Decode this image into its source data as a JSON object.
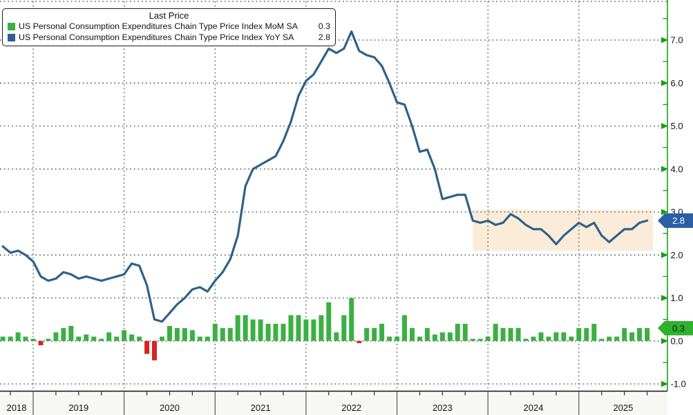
{
  "legend": {
    "title": "Last Price",
    "rows": [
      {
        "label": "US Personal Consumption Expenditures Chain Type Price Index MoM SA",
        "value": "0.3",
        "swatch_color": "#3bb042"
      },
      {
        "label": "US Personal Consumption Expenditures Chain Type Price Index YoY SA",
        "value": "2.8",
        "swatch_color": "#2d5f9b"
      }
    ]
  },
  "chart_data": {
    "type": "combo-bar-line",
    "x_axis": {
      "start_month": "2018-08",
      "end_month": "2025-09",
      "year_labels": [
        "2018",
        "2019",
        "2020",
        "2021",
        "2022",
        "2023",
        "2024",
        "2025"
      ]
    },
    "y_axis": {
      "side": "right",
      "range": [
        -1.2,
        7.95
      ],
      "ticks": [
        -1.0,
        0.0,
        1.0,
        2.0,
        3.0,
        4.0,
        5.0,
        6.0,
        7.0
      ],
      "tick_labels": [
        "-1.0",
        "0.0",
        "1.0",
        "2.0",
        "3.0",
        "4.0",
        "5.0",
        "6.0",
        "7.0"
      ],
      "minor_step": 0.5
    },
    "grid": "dotted",
    "highlight_band": {
      "from_month": "2023-10",
      "y_top": 3.05,
      "y_bottom": 2.1
    },
    "series": [
      {
        "name": "US Personal Consumption Expenditures Chain Type Price Index MoM SA",
        "type": "bar",
        "last_label": "0.3",
        "values": [
          0.1,
          0.1,
          0.2,
          0.1,
          0.05,
          -0.1,
          0.05,
          0.2,
          0.3,
          0.35,
          0.1,
          0.15,
          0.1,
          0.05,
          0.2,
          0.1,
          0.25,
          0.15,
          0.1,
          -0.3,
          -0.45,
          0.1,
          0.35,
          0.3,
          0.3,
          0.25,
          0.1,
          0.1,
          0.4,
          0.3,
          0.3,
          0.6,
          0.6,
          0.5,
          0.5,
          0.4,
          0.4,
          0.4,
          0.6,
          0.6,
          0.5,
          0.5,
          0.6,
          0.9,
          0.2,
          0.6,
          1.0,
          -0.05,
          0.3,
          0.3,
          0.4,
          0.1,
          0.1,
          0.6,
          0.3,
          0.1,
          0.3,
          0.15,
          0.2,
          0.2,
          0.4,
          0.4,
          0.05,
          0.05,
          0.1,
          0.4,
          0.3,
          0.3,
          0.3,
          0.05,
          0.1,
          0.2,
          0.1,
          0.2,
          0.2,
          0.1,
          0.3,
          0.3,
          0.4,
          0.05,
          0.1,
          0.1,
          0.3,
          0.2,
          0.3,
          0.3
        ]
      },
      {
        "name": "US Personal Consumption Expenditures Chain Type Price Index YoY SA",
        "type": "line",
        "last_label": "2.8",
        "values": [
          2.2,
          2.05,
          2.1,
          2.0,
          1.85,
          1.5,
          1.4,
          1.45,
          1.6,
          1.55,
          1.45,
          1.5,
          1.45,
          1.4,
          1.45,
          1.5,
          1.55,
          1.8,
          1.75,
          1.3,
          0.5,
          0.45,
          0.65,
          0.85,
          1.0,
          1.2,
          1.25,
          1.15,
          1.4,
          1.6,
          1.9,
          2.45,
          3.6,
          4.0,
          4.1,
          4.2,
          4.3,
          4.65,
          5.1,
          5.7,
          6.05,
          6.2,
          6.5,
          6.8,
          6.7,
          6.8,
          7.2,
          6.75,
          6.65,
          6.6,
          6.4,
          6.0,
          5.55,
          5.5,
          5.0,
          4.4,
          4.45,
          4.0,
          3.3,
          3.35,
          3.4,
          3.4,
          2.8,
          2.75,
          2.8,
          2.7,
          2.75,
          2.95,
          2.85,
          2.7,
          2.6,
          2.6,
          2.45,
          2.25,
          2.45,
          2.6,
          2.75,
          2.65,
          2.75,
          2.45,
          2.3,
          2.45,
          2.6,
          2.6,
          2.75,
          2.8
        ]
      }
    ],
    "colors": {
      "bar_positive": "#3bb042",
      "bar_negative": "#d62322",
      "line": "#2f6189",
      "band": "#faecd9",
      "axis_green": "#16a016",
      "grid": "#4d4d4d",
      "axis_black": "#111111",
      "badge_mom_bg": "#2fb02f",
      "badge_mom_text": "#062006",
      "badge_yoy_bg": "#2b5fa5",
      "badge_yoy_text": "#ffffff",
      "tick_label": "#111111",
      "strip_bg": "#f7f7f4"
    }
  }
}
